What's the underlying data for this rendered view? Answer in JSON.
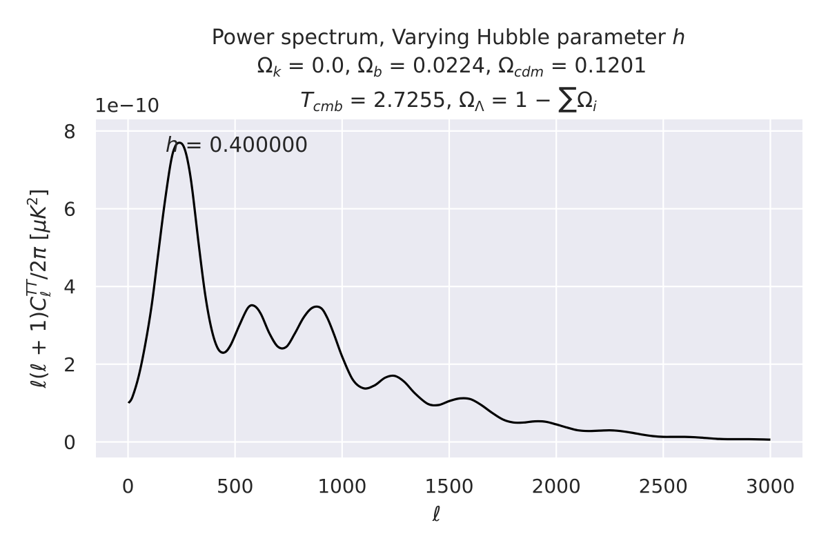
{
  "chart_data": {
    "type": "line",
    "title_lines": [
      "Power spectrum,  Varying Hubble parameter h",
      "Ωk = 0.0, Ωb = 0.0224, Ωcdm = 0.1201",
      "Tcmb = 2.7255, ΩΛ = 1 − ∑Ωi"
    ],
    "xlabel": "ℓ",
    "ylabel": "ℓ(ℓ + 1)C_ℓ^TT/2π    [μK²]",
    "y_offset_label": "1e−10",
    "annotation": "h = 0.400000",
    "xlim": [
      -150,
      3150
    ],
    "ylim": [
      -0.4,
      8.3
    ],
    "x_ticks": [
      0,
      500,
      1000,
      1500,
      2000,
      2500,
      3000
    ],
    "y_ticks": [
      0,
      2,
      4,
      6,
      8
    ],
    "grid": true,
    "background": "#EAEAF2",
    "series": [
      {
        "color": "#000000",
        "x": [
          2,
          20,
          50,
          80,
          110,
          140,
          170,
          200,
          220,
          240,
          260,
          280,
          300,
          330,
          360,
          390,
          420,
          450,
          480,
          520,
          560,
          590,
          620,
          660,
          700,
          740,
          780,
          820,
          860,
          900,
          930,
          960,
          1000,
          1050,
          1100,
          1150,
          1200,
          1245,
          1290,
          1340,
          1400,
          1450,
          1500,
          1550,
          1600,
          1650,
          1700,
          1750,
          1800,
          1850,
          1900,
          1950,
          2000,
          2050,
          2100,
          2150,
          2200,
          2250,
          2300,
          2350,
          2400,
          2450,
          2500,
          2550,
          2600,
          2650,
          2700,
          2750,
          2800,
          2900,
          3000
        ],
        "y": [
          1.0,
          1.15,
          1.7,
          2.5,
          3.5,
          4.8,
          6.1,
          7.2,
          7.6,
          7.7,
          7.6,
          7.2,
          6.5,
          5.1,
          3.8,
          2.9,
          2.4,
          2.3,
          2.5,
          3.0,
          3.45,
          3.5,
          3.3,
          2.8,
          2.45,
          2.45,
          2.8,
          3.2,
          3.45,
          3.45,
          3.2,
          2.8,
          2.2,
          1.6,
          1.38,
          1.45,
          1.65,
          1.7,
          1.55,
          1.25,
          0.98,
          0.95,
          1.05,
          1.12,
          1.1,
          0.95,
          0.75,
          0.58,
          0.5,
          0.5,
          0.53,
          0.52,
          0.45,
          0.37,
          0.3,
          0.28,
          0.29,
          0.3,
          0.28,
          0.24,
          0.19,
          0.15,
          0.13,
          0.13,
          0.13,
          0.12,
          0.1,
          0.08,
          0.07,
          0.07,
          0.06
        ]
      }
    ]
  }
}
